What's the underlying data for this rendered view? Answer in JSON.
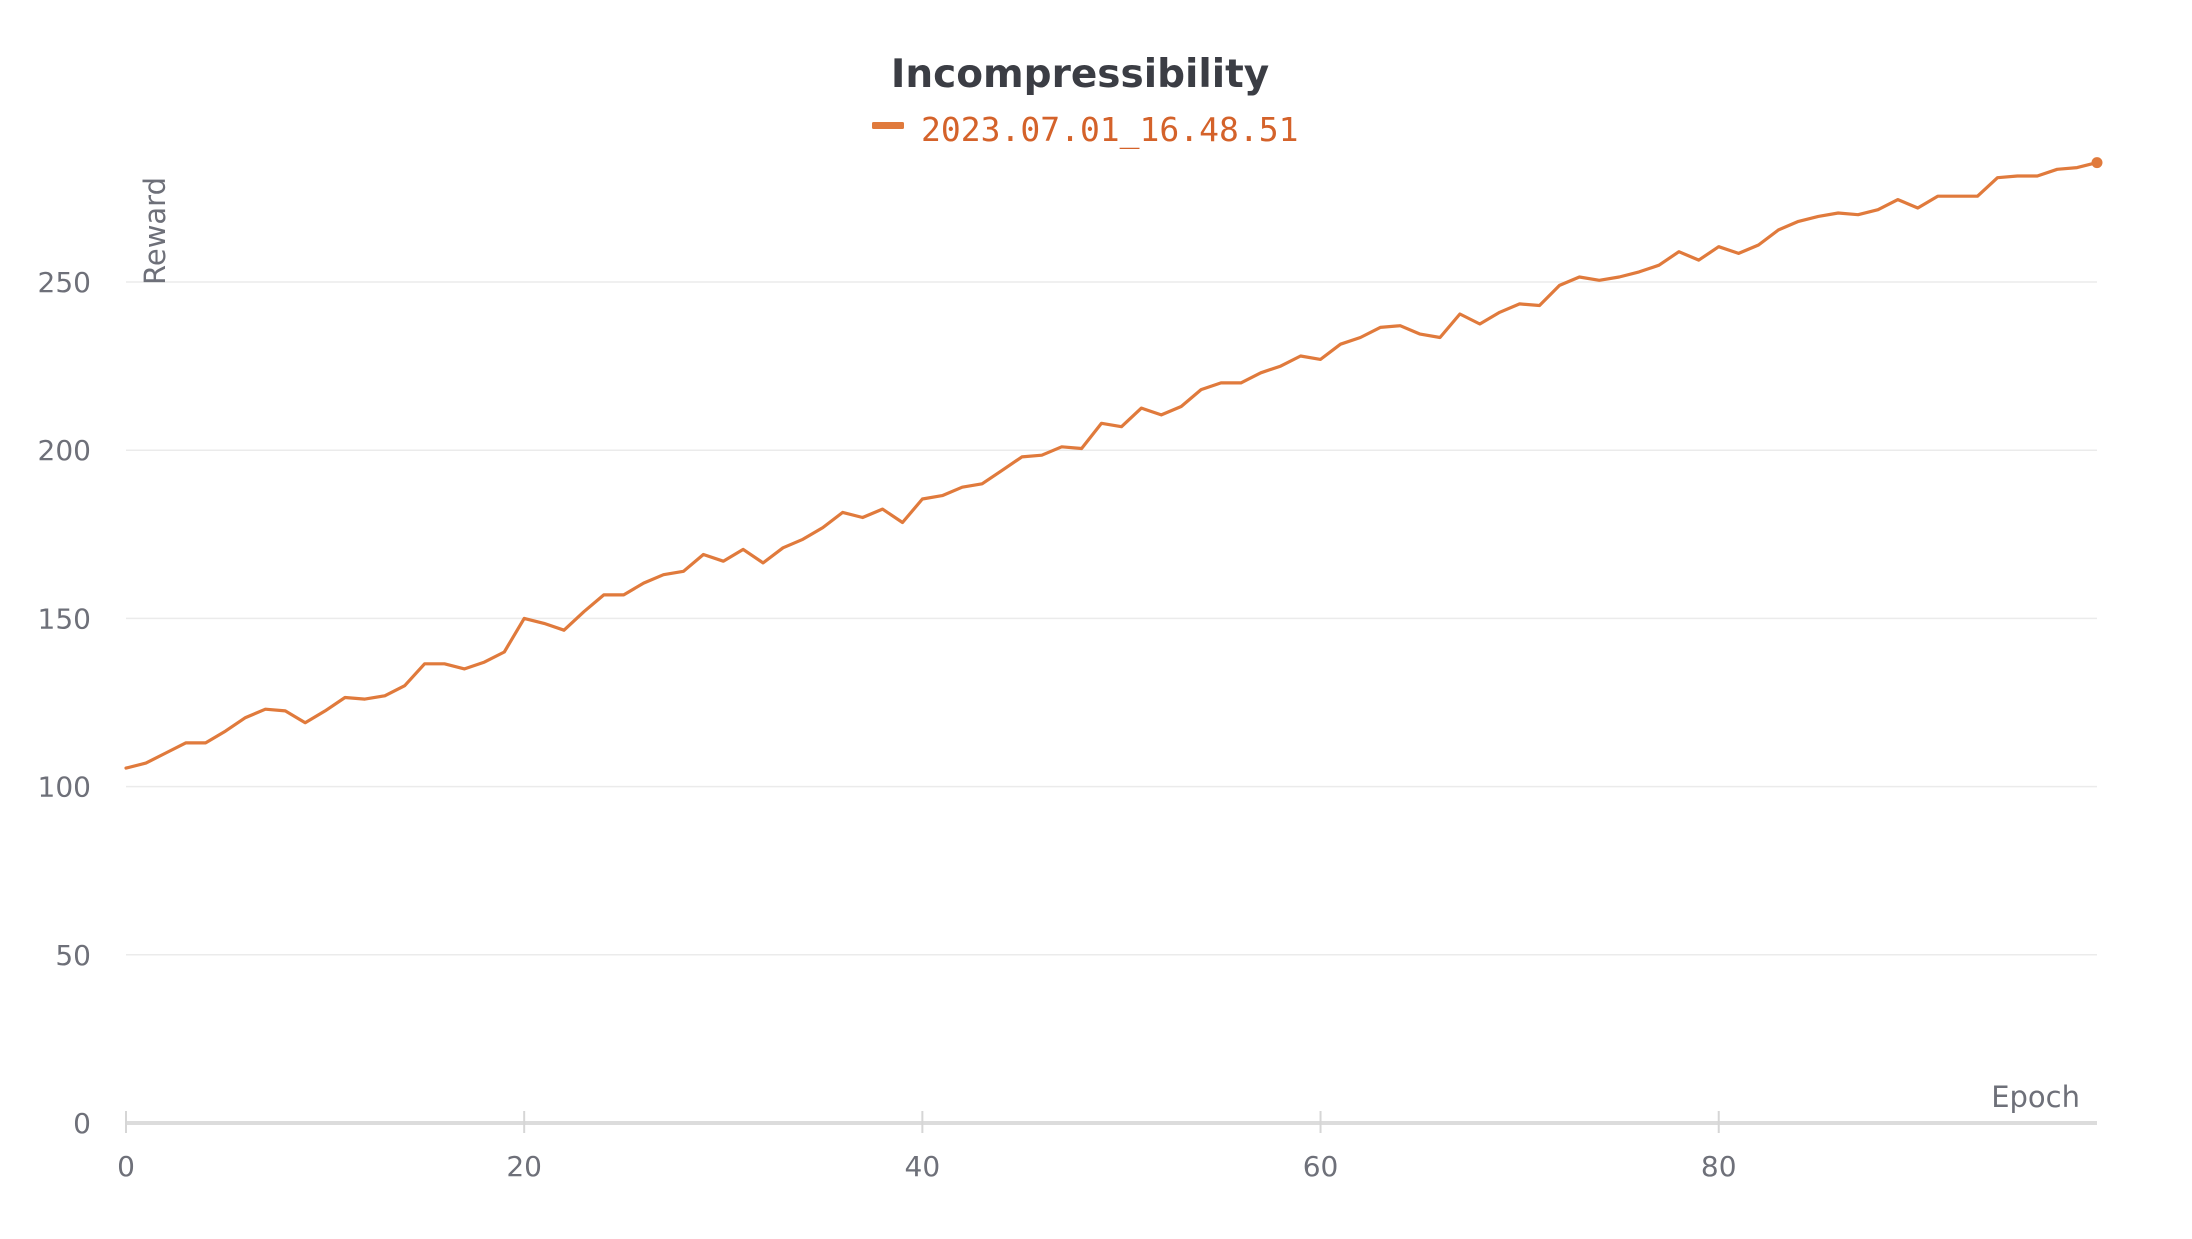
{
  "chart_data": {
    "type": "line",
    "title": "Incompressibility",
    "xlabel": "Epoch",
    "ylabel": "Reward",
    "xlim": [
      0,
      99
    ],
    "ylim": [
      0,
      290
    ],
    "xticks": [
      0,
      20,
      40,
      60,
      80
    ],
    "yticks": [
      0,
      50,
      100,
      150,
      200,
      250
    ],
    "grid": true,
    "legend_position": "top-center",
    "series": [
      {
        "name": "2023.07.01_16.48.51",
        "color": "#e07a3c",
        "x": [
          0,
          1,
          2,
          3,
          4,
          5,
          6,
          7,
          8,
          9,
          10,
          11,
          12,
          13,
          14,
          15,
          16,
          17,
          18,
          19,
          20,
          21,
          22,
          23,
          24,
          25,
          26,
          27,
          28,
          29,
          30,
          31,
          32,
          33,
          34,
          35,
          36,
          37,
          38,
          39,
          40,
          41,
          42,
          43,
          44,
          45,
          46,
          47,
          48,
          49,
          50,
          51,
          52,
          53,
          54,
          55,
          56,
          57,
          58,
          59,
          60,
          61,
          62,
          63,
          64,
          65,
          66,
          67,
          68,
          69,
          70,
          71,
          72,
          73,
          74,
          75,
          76,
          77,
          78,
          79,
          80,
          81,
          82,
          83,
          84,
          85,
          86,
          87,
          88,
          89,
          90,
          91,
          92,
          93,
          94,
          95,
          96,
          97,
          98,
          99
        ],
        "values": [
          105.5,
          107,
          110,
          113,
          113,
          116.5,
          120.5,
          123,
          122.5,
          119,
          122.5,
          126.5,
          126,
          127,
          130,
          136.5,
          136.5,
          135,
          137,
          140,
          150,
          148.5,
          146.5,
          152,
          157,
          157,
          160.5,
          163,
          164,
          169,
          167,
          170.5,
          166.5,
          171,
          173.5,
          177,
          181.5,
          180,
          182.5,
          178.5,
          185.5,
          186.5,
          189,
          190,
          194,
          198,
          198.5,
          201,
          200.5,
          208,
          207,
          212.5,
          210.5,
          213,
          218,
          220,
          220,
          223,
          225,
          228,
          227,
          231.5,
          233.5,
          236.5,
          237,
          234.5,
          233.5,
          240.5,
          237.5,
          241,
          243.5,
          243,
          249,
          251.5,
          250.5,
          251.5,
          253,
          255,
          259,
          256.5,
          260.5,
          258.5,
          261,
          265.5,
          268,
          269.5,
          270.5,
          270,
          271.5,
          274.5,
          272,
          275.5,
          275.5,
          275.5,
          281,
          281.5,
          281.5,
          283.5,
          284,
          285.5
        ]
      }
    ]
  }
}
